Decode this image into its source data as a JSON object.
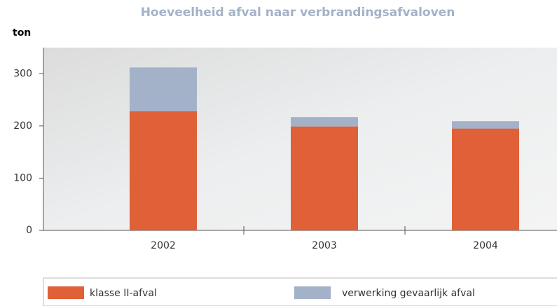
{
  "chart_data": {
    "type": "stacked-bar",
    "title": "Hoeveelheid afval naar verbrandingsafvaloven",
    "y_label": "ton",
    "categories": [
      "2002",
      "2003",
      "2004"
    ],
    "series": [
      {
        "name": "klasse II-afval",
        "color": "#e06038",
        "values": [
          228,
          199,
          195
        ]
      },
      {
        "name": "verwerking gevaarlijk afval",
        "color": "#a3b2c8",
        "values": [
          84,
          18,
          14
        ]
      }
    ],
    "ylim": [
      0,
      350
    ],
    "yticks": [
      0,
      100,
      200,
      300
    ]
  }
}
